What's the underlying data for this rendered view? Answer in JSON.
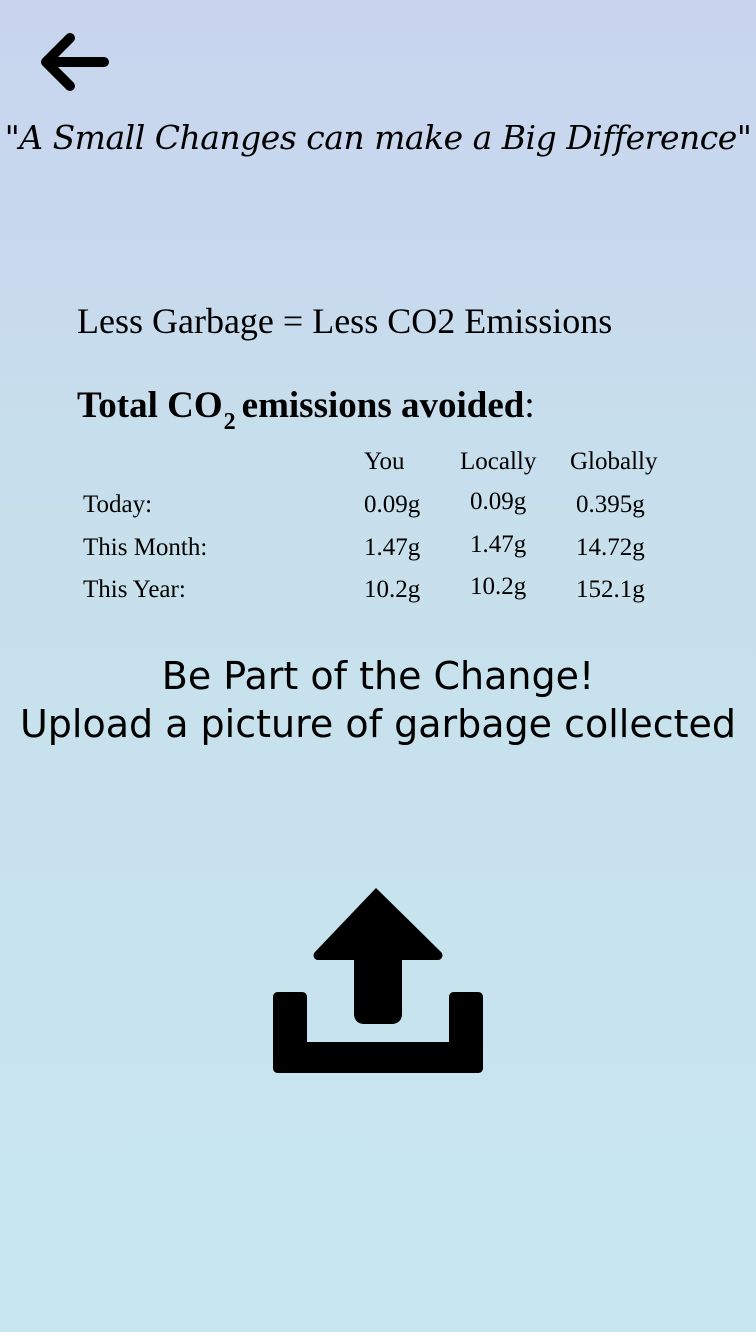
{
  "header": {
    "back_icon": "arrow-left-icon",
    "quote": "\"A Small Changes can make a Big Difference\""
  },
  "slogan": "Less Garbage = Less CO2 Emissions",
  "emissions": {
    "heading_main": "Total CO",
    "heading_sub": "2",
    "heading_rest": "emissions avoided",
    "heading_colon": ":",
    "columns": [
      "You",
      "Locally",
      "Globally"
    ],
    "rows": [
      {
        "label": "Today:",
        "values": [
          "0.09g",
          "0.09g",
          "0.395g"
        ]
      },
      {
        "label": "This Month:",
        "values": [
          "1.47g",
          "1.47g",
          "14.72g"
        ]
      },
      {
        "label": "This Year:",
        "values": [
          "10.2g",
          "10.2g",
          "152.1g"
        ]
      }
    ]
  },
  "call_to_action": {
    "line1": "Be Part of the Change!",
    "line2": "Upload a picture of garbage collected"
  },
  "upload": {
    "icon": "upload-icon"
  }
}
